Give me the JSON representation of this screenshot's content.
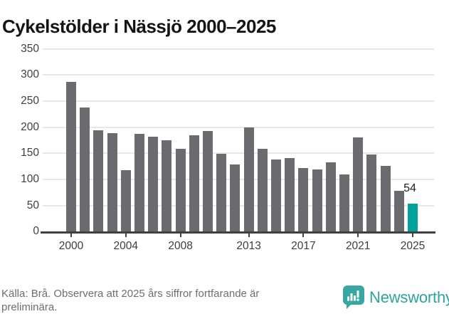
{
  "title": "Cykelstölder i Nässjö 2000–2025",
  "source_note": {
    "line1": "Källa: Brå. Observera att 2025 års siffror fortfarande är",
    "line2": "preliminära."
  },
  "branding": {
    "wordmark": "Newsworthy",
    "icon": "speech-bubble-with-bar-chart-and-exclamation",
    "icon_color": "#38a7a3",
    "wordmark_color": "#2ba49f"
  },
  "chart_data": {
    "type": "bar",
    "title": "Cykelstölder i Nässjö 2000–2025",
    "categories": [
      "2000",
      "2001",
      "2002",
      "2003",
      "2004",
      "2005",
      "2006",
      "2007",
      "2008",
      "2009",
      "2010",
      "2011",
      "2012",
      "2013",
      "2014",
      "2015",
      "2016",
      "2017",
      "2018",
      "2019",
      "2020",
      "2021",
      "2022",
      "2023",
      "2024",
      "2025"
    ],
    "values": [
      286,
      238,
      194,
      188,
      118,
      187,
      182,
      175,
      158,
      185,
      193,
      149,
      129,
      200,
      159,
      138,
      141,
      122,
      119,
      133,
      110,
      181,
      148,
      126,
      78,
      54
    ],
    "xlabel": "",
    "ylabel": "",
    "ylim": [
      0,
      350
    ],
    "y_ticks": [
      0,
      50,
      100,
      150,
      200,
      250,
      300,
      350
    ],
    "x_tick_labels": [
      "2000",
      "2004",
      "2008",
      "2013",
      "2017",
      "2021",
      "2025"
    ],
    "x_tick_indices": [
      0,
      4,
      8,
      13,
      17,
      21,
      25
    ],
    "grid": "horizontal",
    "legend": "none",
    "bar_color": "#6b6b6f",
    "highlight": {
      "index": 25,
      "color": "#00a29b",
      "label": "54"
    }
  }
}
